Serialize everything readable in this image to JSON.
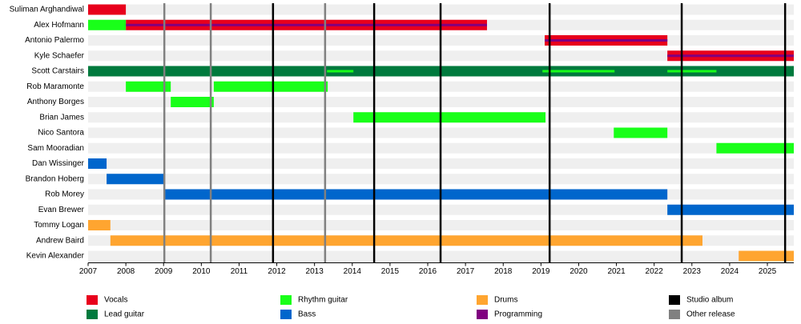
{
  "chart_data": {
    "type": "timeline",
    "categories": [
      "Suliman Arghandiwal",
      "Alex Hofmann",
      "Antonio Palermo",
      "Kyle Schaefer",
      "Scott Carstairs",
      "Rob Maramonte",
      "Anthony Borges",
      "Brian James",
      "Nico Santora",
      "Sam Mooradian",
      "Dan Wissinger",
      "Brandon Hoberg",
      "Rob Morey",
      "Evan Brewer",
      "Tommy Logan",
      "Andrew Baird",
      "Kevin Alexander"
    ],
    "xlim": [
      2007,
      2025.7
    ],
    "xticks": [
      2007,
      2008,
      2009,
      2010,
      2011,
      2012,
      2013,
      2014,
      2015,
      2016,
      2017,
      2018,
      2019,
      2020,
      2021,
      2022,
      2023,
      2024,
      2025
    ],
    "series": [
      {
        "name": "Vocals",
        "color": "#e8001c",
        "bars": [
          {
            "category": "Suliman Arghandiwal",
            "start": 2007,
            "end": 2008
          },
          {
            "category": "Alex Hofmann",
            "start": 2008,
            "end": 2017.57
          },
          {
            "category": "Antonio Palermo",
            "start": 2019.1,
            "end": 2022.35
          },
          {
            "category": "Kyle Schaefer",
            "start": 2022.35,
            "end": 2025.7
          }
        ]
      },
      {
        "name": "Lead guitar",
        "color": "#007a3d",
        "bars": [
          {
            "category": "Scott Carstairs",
            "start": 2007,
            "end": 2025.7
          }
        ]
      },
      {
        "name": "Rhythm guitar",
        "color": "#19ff19",
        "bars": [
          {
            "category": "Alex Hofmann",
            "start": 2007,
            "end": 2008
          },
          {
            "category": "Scott Carstairs",
            "start": 2013.33,
            "end": 2014.03
          },
          {
            "category": "Scott Carstairs",
            "start": 2019.04,
            "end": 2020.95
          },
          {
            "category": "Scott Carstairs",
            "start": 2022.35,
            "end": 2023.65
          },
          {
            "category": "Rob Maramonte",
            "start": 2008,
            "end": 2009.19
          },
          {
            "category": "Rob Maramonte",
            "start": 2010.33,
            "end": 2013.35
          },
          {
            "category": "Anthony Borges",
            "start": 2009.19,
            "end": 2010.33
          },
          {
            "category": "Brian James",
            "start": 2014.03,
            "end": 2019.12
          },
          {
            "category": "Nico Santora",
            "start": 2020.93,
            "end": 2022.35
          },
          {
            "category": "Sam Mooradian",
            "start": 2023.65,
            "end": 2025.7
          }
        ]
      },
      {
        "name": "Bass",
        "color": "#0066cc",
        "bars": [
          {
            "category": "Dan Wissinger",
            "start": 2007,
            "end": 2007.49
          },
          {
            "category": "Brandon Hoberg",
            "start": 2007.49,
            "end": 2009.02
          },
          {
            "category": "Rob Morey",
            "start": 2009.02,
            "end": 2022.35
          },
          {
            "category": "Evan Brewer",
            "start": 2022.35,
            "end": 2025.7
          }
        ]
      },
      {
        "name": "Drums",
        "color": "#ffa530",
        "bars": [
          {
            "category": "Tommy Logan",
            "start": 2007,
            "end": 2007.59
          },
          {
            "category": "Andrew Baird",
            "start": 2007.59,
            "end": 2023.28
          },
          {
            "category": "Kevin Alexander",
            "start": 2024.24,
            "end": 2025.7
          }
        ]
      },
      {
        "name": "Programming",
        "color": "#800080",
        "bars": [
          {
            "category": "Alex Hofmann",
            "start": 2008,
            "end": 2017.57
          },
          {
            "category": "Antonio Palermo",
            "start": 2019.1,
            "end": 2022.35
          },
          {
            "category": "Kyle Schaefer",
            "start": 2022.35,
            "end": 2025.7
          }
        ]
      }
    ],
    "events": [
      {
        "name": "Studio album",
        "color": "#000000",
        "x": [
          2011.9,
          2014.58,
          2016.34,
          2019.23,
          2022.73,
          2025.47
        ]
      },
      {
        "name": "Other release",
        "color": "#808080",
        "x": [
          2009.02,
          2010.25,
          2013.28
        ]
      }
    ]
  }
}
